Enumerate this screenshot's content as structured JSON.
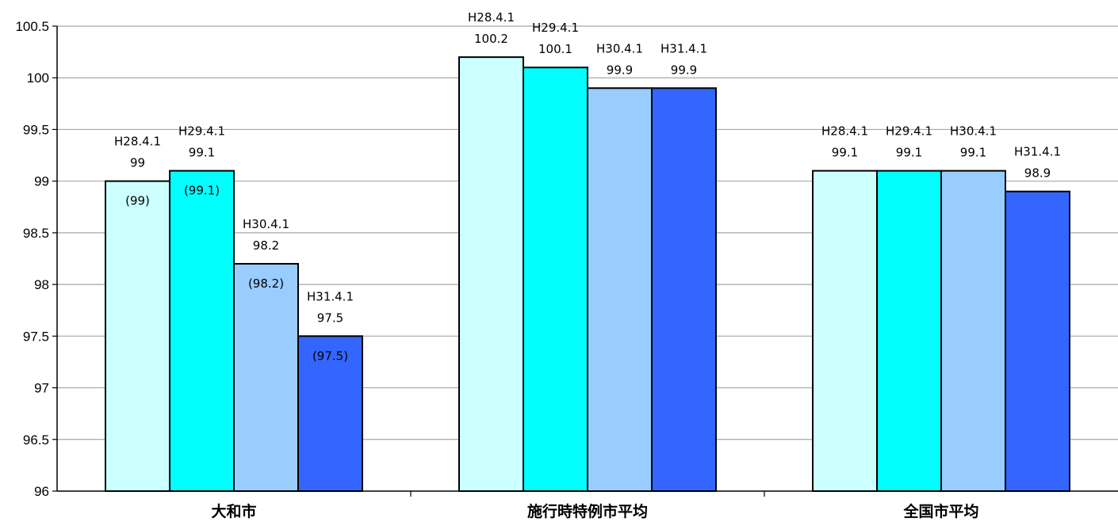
{
  "chart_data": {
    "type": "bar",
    "categories": [
      "大和市",
      "施行時特例市平均",
      "全国市平均"
    ],
    "series": [
      {
        "date_label": "H28.4.1",
        "values": [
          99,
          100.2,
          99.1
        ],
        "color": "#ccffff"
      },
      {
        "date_label": "H29.4.1",
        "values": [
          99.1,
          100.1,
          99.1
        ],
        "color": "#00ffff"
      },
      {
        "date_label": "H30.4.1",
        "values": [
          98.2,
          99.9,
          99.1
        ],
        "color": "#99ccff"
      },
      {
        "date_label": "H31.4.1",
        "values": [
          97.5,
          99.9,
          98.9
        ],
        "color": "#3366ff"
      }
    ],
    "inner_labels": [
      {
        "category": 0,
        "series": 0,
        "text": "(99)"
      },
      {
        "category": 0,
        "series": 1,
        "text": "(99.1)"
      },
      {
        "category": 0,
        "series": 2,
        "text": "(98.2)"
      },
      {
        "category": 0,
        "series": 3,
        "text": "(97.5)"
      }
    ],
    "y_ticks": [
      "96",
      "96.5",
      "97",
      "97.5",
      "98",
      "98.5",
      "99",
      "99.5",
      "100",
      "100.5"
    ],
    "ylim": [
      96,
      100.5
    ],
    "grid": true,
    "title": "",
    "xlabel": "",
    "ylabel": ""
  }
}
